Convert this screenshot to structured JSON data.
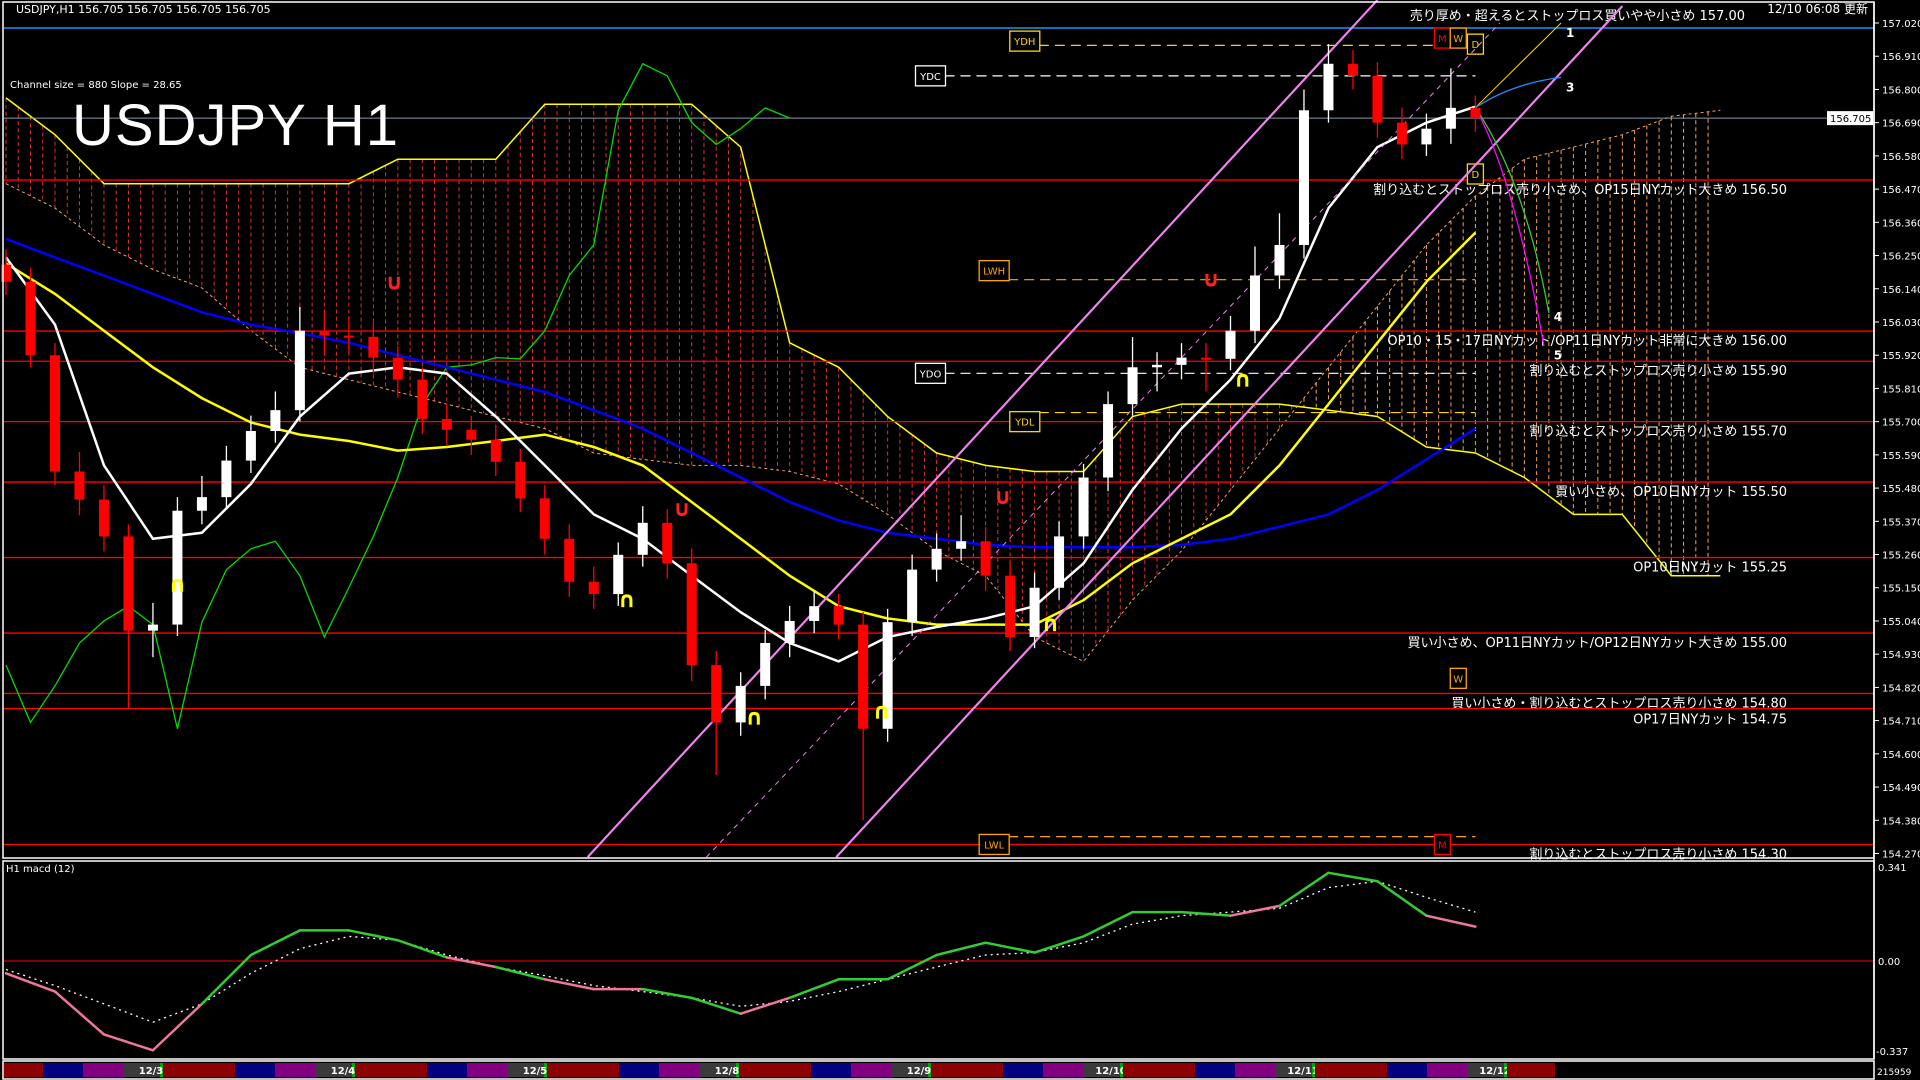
{
  "header": {
    "symbol_line": "USDJPY,H1  156.705 156.705 156.705 156.705",
    "updated": "12/10 06:08 更新"
  },
  "overlay": {
    "channel_info": "Channel size = 880 Slope = 28.65",
    "big_title": "USDJPY H1"
  },
  "macd_panel": {
    "label": "H1  macd (12)",
    "axis_top": "0.341",
    "axis_zero": "0.00",
    "axis_bottom": "-0.337",
    "bottom_value": "215959"
  },
  "current_price": "156.705",
  "price_axis": [
    "157.020",
    "156.910",
    "156.800",
    "156.690",
    "156.580",
    "156.470",
    "156.360",
    "156.250",
    "156.140",
    "156.030",
    "155.920",
    "155.810",
    "155.700",
    "155.590",
    "155.480",
    "155.370",
    "155.260",
    "155.150",
    "155.040",
    "154.930",
    "154.820",
    "154.710",
    "154.600",
    "154.490",
    "154.380",
    "154.270"
  ],
  "time_axis": [
    "12/3",
    "12/4",
    "12/5",
    "12/8",
    "12/9",
    "12/10",
    "12/11",
    "12/12"
  ],
  "colors": {
    "bull": "#ffffff",
    "bear": "#ff0000",
    "level_line": "#ff0000",
    "ma_fast": "#ffffff",
    "ma_mid": "#ffff00",
    "ma_slow": "#0000ff",
    "chikou": "#00dd00",
    "channel": "#ee82ee",
    "macd_up": "#33cc33",
    "macd_down": "#ee7799",
    "session_colors": [
      "#8b0000",
      "#000080",
      "#800080",
      "#3a3a3a"
    ]
  },
  "levels": [
    {
      "price": 157.0,
      "text": "売り厚め・超えるとストップロス買いやや小さめ 157.00",
      "line": false
    },
    {
      "price": 156.5,
      "text": "割り込むとストップロス売り小さめ、OP15日NYカット大きめ 156.50",
      "line": true
    },
    {
      "price": 156.0,
      "text": "OP10・15・17日NYカット/OP11日NYカット非常に大きめ 156.00",
      "line": true
    },
    {
      "price": 155.9,
      "text": "割り込むとストップロス売り小さめ 155.90",
      "line": true
    },
    {
      "price": 155.7,
      "text": "割り込むとストップロス売り小さめ 155.70",
      "line": true
    },
    {
      "price": 155.5,
      "text": "買い小さめ、OP10日NYカット 155.50",
      "line": true
    },
    {
      "price": 155.25,
      "text": "OP10日NYカット 155.25",
      "line": true
    },
    {
      "price": 155.0,
      "text": "買い小さめ、OP11日NYカット/OP12日NYカット大きめ 155.00",
      "line": true
    },
    {
      "price": 154.8,
      "text": "買い小さめ・割り込むとストップロス売り小さめ 154.80",
      "line": true
    },
    {
      "price": 154.75,
      "text": "OP17日NYカット 154.75",
      "line": true
    },
    {
      "price": 154.3,
      "text": "割り込むとストップロス売り小さめ 154.30",
      "line": true
    }
  ],
  "ref_boxes": [
    {
      "label": "YDH",
      "bar": 41.6,
      "price": 156.96,
      "color": "#ffd700",
      "line_price": 156.946
    },
    {
      "label": "YDC",
      "bar": 37.75,
      "price": 156.845,
      "color": "#ffffff",
      "line_price": 156.845
    },
    {
      "label": "LWH",
      "bar": 40.35,
      "price": 156.2,
      "color": "#ffa500",
      "line_price": 156.17
    },
    {
      "label": "YDO",
      "bar": 37.75,
      "price": 155.86,
      "color": "#ffffff",
      "line_price": 155.86
    },
    {
      "label": "YDL",
      "bar": 41.6,
      "price": 155.7,
      "color": "#ffd700",
      "line_price": 155.73
    },
    {
      "label": "LWL",
      "bar": 40.35,
      "price": 154.3,
      "color": "#ffa500",
      "line_price": 154.326
    },
    {
      "label": "M",
      "bar": 58.65,
      "price": 156.97,
      "color": "#ff0000"
    },
    {
      "label": "W",
      "bar": 59.3,
      "price": 156.97,
      "color": "#ffa500"
    },
    {
      "label": "D",
      "bar": 60.0,
      "price": 156.95,
      "color": "#ffd700"
    },
    {
      "label": "D",
      "bar": 60.0,
      "price": 156.52,
      "color": "#ffd700"
    },
    {
      "label": "W",
      "bar": 59.3,
      "price": 154.85,
      "color": "#ffa500"
    },
    {
      "label": "M",
      "bar": 58.65,
      "price": 154.3,
      "color": "#ff0000"
    }
  ],
  "projection_labels": [
    {
      "text": "1",
      "bar": 63.7,
      "price": 157.0
    },
    {
      "text": "3",
      "bar": 63.7,
      "price": 156.82
    },
    {
      "text": "4",
      "bar": 63.2,
      "price": 156.06
    },
    {
      "text": "5",
      "bar": 63.2,
      "price": 155.95
    }
  ],
  "markers": [
    {
      "bar": 7,
      "price": 155.16,
      "type": "yellow"
    },
    {
      "bar": 25.35,
      "price": 155.11,
      "type": "yellow"
    },
    {
      "bar": 30.55,
      "price": 154.72,
      "type": "yellow"
    },
    {
      "bar": 35.75,
      "price": 154.74,
      "type": "yellow"
    },
    {
      "bar": 42.65,
      "price": 155.03,
      "type": "yellow"
    },
    {
      "bar": 50.5,
      "price": 155.84,
      "type": "yellow"
    },
    {
      "bar": 15.85,
      "price": 156.16,
      "type": "red"
    },
    {
      "bar": 27.6,
      "price": 155.41,
      "type": "red"
    },
    {
      "bar": 40.7,
      "price": 155.45,
      "type": "red"
    },
    {
      "bar": 49.2,
      "price": 156.17,
      "type": "red"
    }
  ],
  "chart_data": [
    {
      "type": "candlestick",
      "title": "USDJPY H1",
      "ylim": [
        154.27,
        157.02
      ],
      "candles": [
        [
          156.22,
          156.27,
          156.12,
          156.163
        ],
        [
          156.163,
          156.21,
          155.88,
          155.92
        ],
        [
          155.92,
          155.96,
          155.49,
          155.535
        ],
        [
          155.535,
          155.6,
          155.39,
          155.442
        ],
        [
          155.442,
          155.49,
          155.27,
          155.32
        ],
        [
          155.32,
          155.36,
          154.75,
          155.008
        ],
        [
          155.008,
          155.1,
          154.92,
          155.028
        ],
        [
          155.028,
          155.45,
          154.99,
          155.405
        ],
        [
          155.405,
          155.52,
          155.36,
          155.45
        ],
        [
          155.45,
          155.62,
          155.41,
          155.571
        ],
        [
          155.571,
          155.72,
          155.53,
          155.669
        ],
        [
          155.669,
          155.8,
          155.63,
          155.738
        ],
        [
          155.738,
          156.08,
          155.7,
          156.001
        ],
        [
          156.001,
          156.07,
          155.92,
          155.985
        ],
        [
          155.985,
          156.05,
          155.93,
          155.981
        ],
        [
          155.981,
          156.03,
          155.86,
          155.912
        ],
        [
          155.912,
          155.95,
          155.78,
          155.839
        ],
        [
          155.839,
          155.88,
          155.66,
          155.709
        ],
        [
          155.709,
          155.76,
          155.62,
          155.673
        ],
        [
          155.673,
          155.72,
          155.59,
          155.64
        ],
        [
          155.64,
          155.69,
          155.52,
          155.567
        ],
        [
          155.567,
          155.61,
          155.4,
          155.446
        ],
        [
          155.446,
          155.49,
          155.26,
          155.312
        ],
        [
          155.312,
          155.36,
          155.12,
          155.17
        ],
        [
          155.17,
          155.22,
          155.08,
          155.129
        ],
        [
          155.129,
          155.3,
          155.09,
          155.259
        ],
        [
          155.259,
          155.42,
          155.22,
          155.365
        ],
        [
          155.365,
          155.41,
          155.18,
          155.231
        ],
        [
          155.231,
          155.28,
          154.84,
          154.894
        ],
        [
          154.894,
          154.94,
          154.53,
          154.704
        ],
        [
          154.704,
          154.87,
          154.66,
          154.825
        ],
        [
          154.825,
          155.01,
          154.78,
          154.967
        ],
        [
          154.967,
          155.09,
          154.92,
          155.04
        ],
        [
          155.04,
          155.14,
          155.0,
          155.089
        ],
        [
          155.089,
          155.13,
          154.98,
          155.028
        ],
        [
          155.028,
          155.07,
          154.38,
          154.683
        ],
        [
          154.683,
          155.08,
          154.64,
          155.036
        ],
        [
          155.036,
          155.26,
          154.99,
          155.21
        ],
        [
          155.21,
          155.33,
          155.17,
          155.279
        ],
        [
          155.279,
          155.39,
          155.24,
          155.304
        ],
        [
          155.304,
          155.35,
          155.14,
          155.19
        ],
        [
          155.19,
          155.23,
          154.94,
          154.987
        ],
        [
          154.987,
          155.2,
          154.95,
          155.15
        ],
        [
          155.15,
          155.37,
          155.11,
          155.32
        ],
        [
          155.32,
          155.56,
          155.28,
          155.515
        ],
        [
          155.515,
          155.8,
          155.47,
          155.758
        ],
        [
          155.758,
          155.98,
          155.72,
          155.88
        ],
        [
          155.88,
          155.93,
          155.8,
          155.888
        ],
        [
          155.888,
          155.96,
          155.84,
          155.912
        ],
        [
          155.912,
          155.96,
          155.8,
          155.908
        ],
        [
          155.908,
          156.05,
          155.87,
          156.001
        ],
        [
          156.001,
          156.28,
          155.96,
          156.184
        ],
        [
          156.184,
          156.39,
          156.14,
          156.285
        ],
        [
          156.285,
          156.8,
          156.24,
          156.731
        ],
        [
          156.731,
          156.95,
          156.69,
          156.885
        ],
        [
          156.885,
          156.93,
          156.8,
          156.845
        ],
        [
          156.845,
          156.89,
          156.64,
          156.69
        ],
        [
          156.69,
          156.74,
          156.57,
          156.618
        ],
        [
          156.618,
          156.72,
          156.58,
          156.67
        ],
        [
          156.67,
          156.87,
          156.62,
          156.739
        ],
        [
          156.739,
          156.78,
          156.66,
          156.705
        ]
      ],
      "ma_step": 2,
      "ma_fast": [
        156.244,
        156.021,
        155.555,
        155.312,
        155.332,
        155.494,
        155.717,
        155.859,
        155.88,
        155.859,
        155.717,
        155.555,
        155.393,
        155.312,
        155.19,
        155.069,
        154.967,
        154.906,
        154.987,
        155.02,
        155.048,
        155.089,
        155.231,
        155.474,
        155.677,
        155.839,
        156.042,
        156.407,
        156.609,
        156.69,
        156.743
      ],
      "ma_mid": [
        156.224,
        156.123,
        156.001,
        155.88,
        155.778,
        155.697,
        155.657,
        155.636,
        155.604,
        155.616,
        155.636,
        155.657,
        155.616,
        155.555,
        155.434,
        155.312,
        155.19,
        155.089,
        155.048,
        155.028,
        155.028,
        155.028,
        155.109,
        155.231,
        155.312,
        155.393,
        155.555,
        155.758,
        155.961,
        156.163,
        156.326
      ],
      "ma_slow": [
        156.305,
        156.244,
        156.184,
        156.123,
        156.062,
        156.021,
        155.993,
        155.961,
        155.92,
        155.88,
        155.839,
        155.798,
        155.738,
        155.677,
        155.596,
        155.515,
        155.434,
        155.373,
        155.332,
        155.312,
        155.292,
        155.284,
        155.284,
        155.284,
        155.292,
        155.312,
        155.352,
        155.393,
        155.474,
        155.575,
        155.677
      ],
      "cloud_span_a": [
        156.488,
        156.407,
        156.285,
        156.204,
        156.143,
        156.001,
        155.88,
        155.839,
        155.798,
        155.758,
        155.717,
        155.677,
        155.596,
        155.575,
        155.555,
        155.555,
        155.535,
        155.494,
        155.393,
        155.272,
        155.19,
        154.987,
        154.906,
        155.109,
        155.272,
        155.474,
        155.677,
        155.88,
        156.082,
        156.285,
        156.447,
        156.569,
        156.609,
        156.65,
        156.711,
        156.731
      ],
      "cloud_span_b": [
        156.772,
        156.65,
        156.488,
        156.488,
        156.488,
        156.488,
        156.488,
        156.488,
        156.569,
        156.569,
        156.569,
        156.751,
        156.751,
        156.751,
        156.751,
        156.609,
        155.961,
        155.88,
        155.717,
        155.596,
        155.555,
        155.535,
        155.535,
        155.717,
        155.758,
        155.758,
        155.758,
        155.738,
        155.717,
        155.616,
        155.596,
        155.515,
        155.393,
        155.393,
        155.19,
        155.19
      ],
      "chikou_shift": 28,
      "channel_lines": [
        {
          "from": [
            23.75,
            154.258
          ],
          "to": [
            56.0,
            157.096
          ]
        },
        {
          "from": [
            33.9,
            154.258
          ],
          "to": [
            66.0,
            157.076
          ]
        }
      ]
    },
    {
      "type": "line",
      "title": "H1  macd (12)",
      "ylim": [
        -0.337,
        0.341
      ],
      "step": 2,
      "macd": [
        -0.045,
        -0.112,
        -0.269,
        -0.327,
        -0.157,
        0.022,
        0.112,
        0.112,
        0.076,
        0.013,
        -0.022,
        -0.067,
        -0.103,
        -0.103,
        -0.135,
        -0.193,
        -0.135,
        -0.067,
        -0.067,
        0.022,
        0.067,
        0.031,
        0.09,
        0.179,
        0.179,
        0.166,
        0.202,
        0.323,
        0.292,
        0.166,
        0.126
      ],
      "signal": [
        -0.031,
        -0.09,
        -0.157,
        -0.224,
        -0.157,
        -0.045,
        0.045,
        0.09,
        0.076,
        0.022,
        -0.022,
        -0.054,
        -0.09,
        -0.112,
        -0.135,
        -0.166,
        -0.148,
        -0.112,
        -0.067,
        -0.022,
        0.022,
        0.031,
        0.067,
        0.135,
        0.166,
        0.179,
        0.193,
        0.269,
        0.292,
        0.233,
        0.179
      ]
    }
  ]
}
